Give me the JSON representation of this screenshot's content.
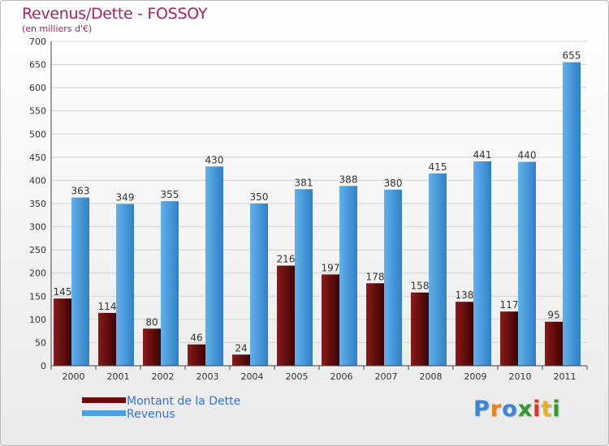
{
  "chart_data": {
    "type": "bar",
    "title": "Revenus/Dette - FOSSOY",
    "subtitle": "(en milliers d'€)",
    "categories": [
      "2000",
      "2001",
      "2002",
      "2003",
      "2004",
      "2005",
      "2006",
      "2007",
      "2008",
      "2009",
      "2010",
      "2011"
    ],
    "series": [
      {
        "name": "Montant de la Dette",
        "color": "#6b0b0b",
        "values": [
          145,
          114,
          80,
          46,
          24,
          216,
          197,
          178,
          158,
          138,
          117,
          95
        ]
      },
      {
        "name": "Revenus",
        "color": "#4a9fe0",
        "values": [
          363,
          349,
          355,
          430,
          350,
          381,
          388,
          380,
          415,
          441,
          440,
          655
        ]
      }
    ],
    "ylim": [
      0,
      700
    ],
    "yticks": [
      0,
      50,
      100,
      150,
      200,
      250,
      300,
      350,
      400,
      450,
      500,
      550,
      600,
      650,
      700
    ],
    "grid": true,
    "legend": "bottom-left"
  },
  "logo": {
    "letters": [
      "P",
      "r",
      "o",
      "x",
      "i",
      "t",
      "i"
    ],
    "colors": [
      "#3a86d6",
      "#e8851a",
      "#3a86d6",
      "#2c9a2c",
      "#d6352a",
      "#e8b21a",
      "#2c9a2c"
    ]
  }
}
